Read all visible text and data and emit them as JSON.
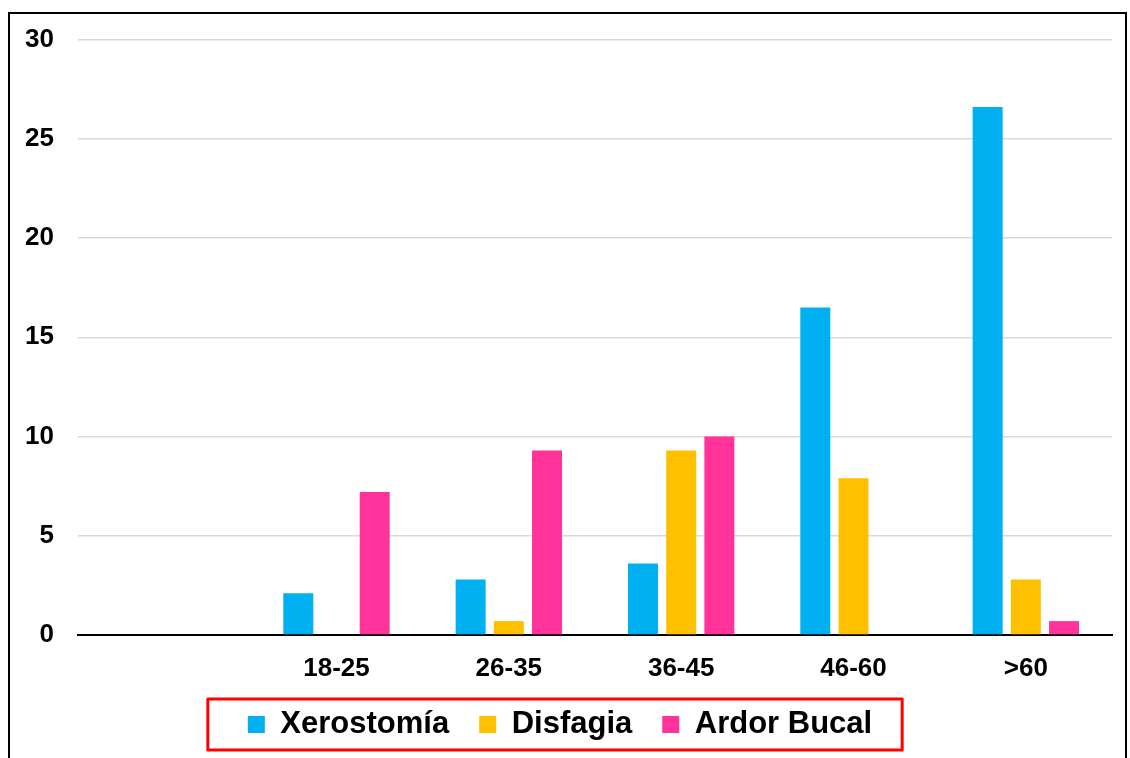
{
  "chart_data": {
    "type": "bar",
    "categories": [
      null,
      "18-25",
      "26-35",
      "36-45",
      "46-60",
      ">60"
    ],
    "series": [
      {
        "name": "Xerostomía",
        "color": "#00b0f0",
        "values": [
          null,
          2.1,
          2.8,
          3.6,
          16.5,
          26.6
        ]
      },
      {
        "name": "Disfagia",
        "color": "#ffc000",
        "values": [
          null,
          0,
          0.7,
          9.3,
          7.9,
          2.8
        ]
      },
      {
        "name": "Ardor Bucal",
        "color": "#ff3399",
        "values": [
          null,
          7.2,
          9.3,
          10.0,
          0,
          0.7
        ]
      }
    ],
    "ylim": [
      0,
      30
    ],
    "yticks": [
      0,
      5,
      10,
      15,
      20,
      25,
      30
    ],
    "grid": "y",
    "legend": "bottom"
  }
}
